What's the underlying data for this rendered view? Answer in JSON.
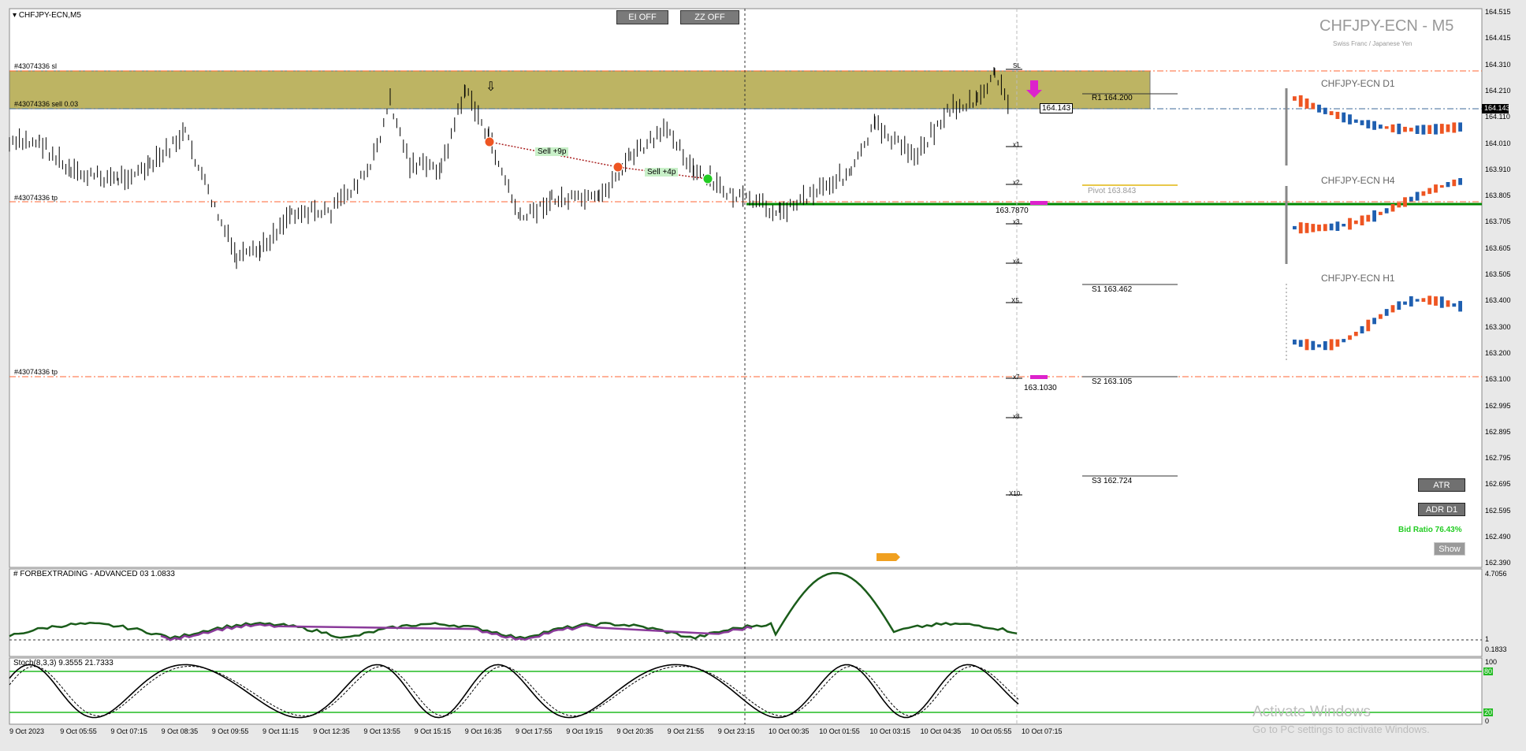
{
  "window": {
    "symbol_tab": "CHFJPY-ECN,M5",
    "watermark_title": "CHFJPY-ECN - M5",
    "watermark_subtitle": "Swiss Franc / Japanese Yen"
  },
  "toolbar": {
    "ei_label": "EI OFF",
    "zz_label": "ZZ OFF"
  },
  "orders": {
    "sl_label": "#43074336 sl",
    "sell_label": "#43074336 sell 0.03",
    "tp1_label": "#43074336 tp",
    "tp2_label": "#43074336 tp"
  },
  "trades": {
    "sell1": "Sell +9p",
    "sell2": "Sell +4p"
  },
  "pivots": {
    "r1": "R1 164.200",
    "pivot": "Pivot 163.843",
    "s1": "S1 163.462",
    "s2": "S2 163.105",
    "s3": "S3 162.724"
  },
  "levels": {
    "sl": "SL",
    "x1": "x1",
    "x2": "x2",
    "x3": "x3",
    "x4": "x4",
    "x5": "X5",
    "x7": "x7",
    "x8": "x8",
    "x10": "X10",
    "price_a": "163.7870",
    "price_b": "163.1030",
    "current_box": "164.143"
  },
  "mini_charts": {
    "d1": "CHFJPY-ECN D1",
    "h4": "CHFJPY-ECN H4",
    "h1": "CHFJPY-ECN H1"
  },
  "right_panel": {
    "atr": "ATR",
    "adr": "ADR D1",
    "bid_ratio": "Bid Ratio 76.43%",
    "show": "Show"
  },
  "price_axis": {
    "ticks": [
      "164.515",
      "164.415",
      "164.310",
      "164.210",
      "164.110",
      "164.010",
      "163.910",
      "163.805",
      "163.705",
      "163.605",
      "163.505",
      "163.400",
      "163.300",
      "163.200",
      "163.100",
      "162.995",
      "162.895",
      "162.795",
      "162.695",
      "162.595",
      "162.490",
      "162.390"
    ],
    "current": "164.143"
  },
  "indicator1": {
    "title": "# FORBEXTRADING - ADVANCED 03 1.0833",
    "max": "4.7056",
    "mid": "1",
    "min": "0.1833"
  },
  "indicator2": {
    "title": "Stoch(8,3,3) 9.3555 21.7333",
    "top": "100",
    "hi": "80",
    "lo": "20",
    "bottom": "0"
  },
  "time_axis": [
    "9 Oct 2023",
    "9 Oct 05:55",
    "9 Oct 07:15",
    "9 Oct 08:35",
    "9 Oct 09:55",
    "9 Oct 11:15",
    "9 Oct 12:35",
    "9 Oct 13:55",
    "9 Oct 15:15",
    "9 Oct 16:35",
    "9 Oct 17:55",
    "9 Oct 19:15",
    "9 Oct 20:35",
    "9 Oct 21:55",
    "9 Oct 23:15",
    "10 Oct 00:35",
    "10 Oct 01:55",
    "10 Oct 03:15",
    "10 Oct 04:35",
    "10 Oct 05:55",
    "10 Oct 07:15"
  ],
  "os_watermark": {
    "line1": "Activate Windows",
    "line2": "Go to PC settings to activate Windows."
  },
  "colors": {
    "zone": "#bdb463",
    "tp_line": "#ff6633",
    "pivot_green": "#008800",
    "bull": "#1f5fb0",
    "bear": "#ee5522",
    "osc": "#1a5c1a",
    "magenta": "#dd22cc"
  }
}
